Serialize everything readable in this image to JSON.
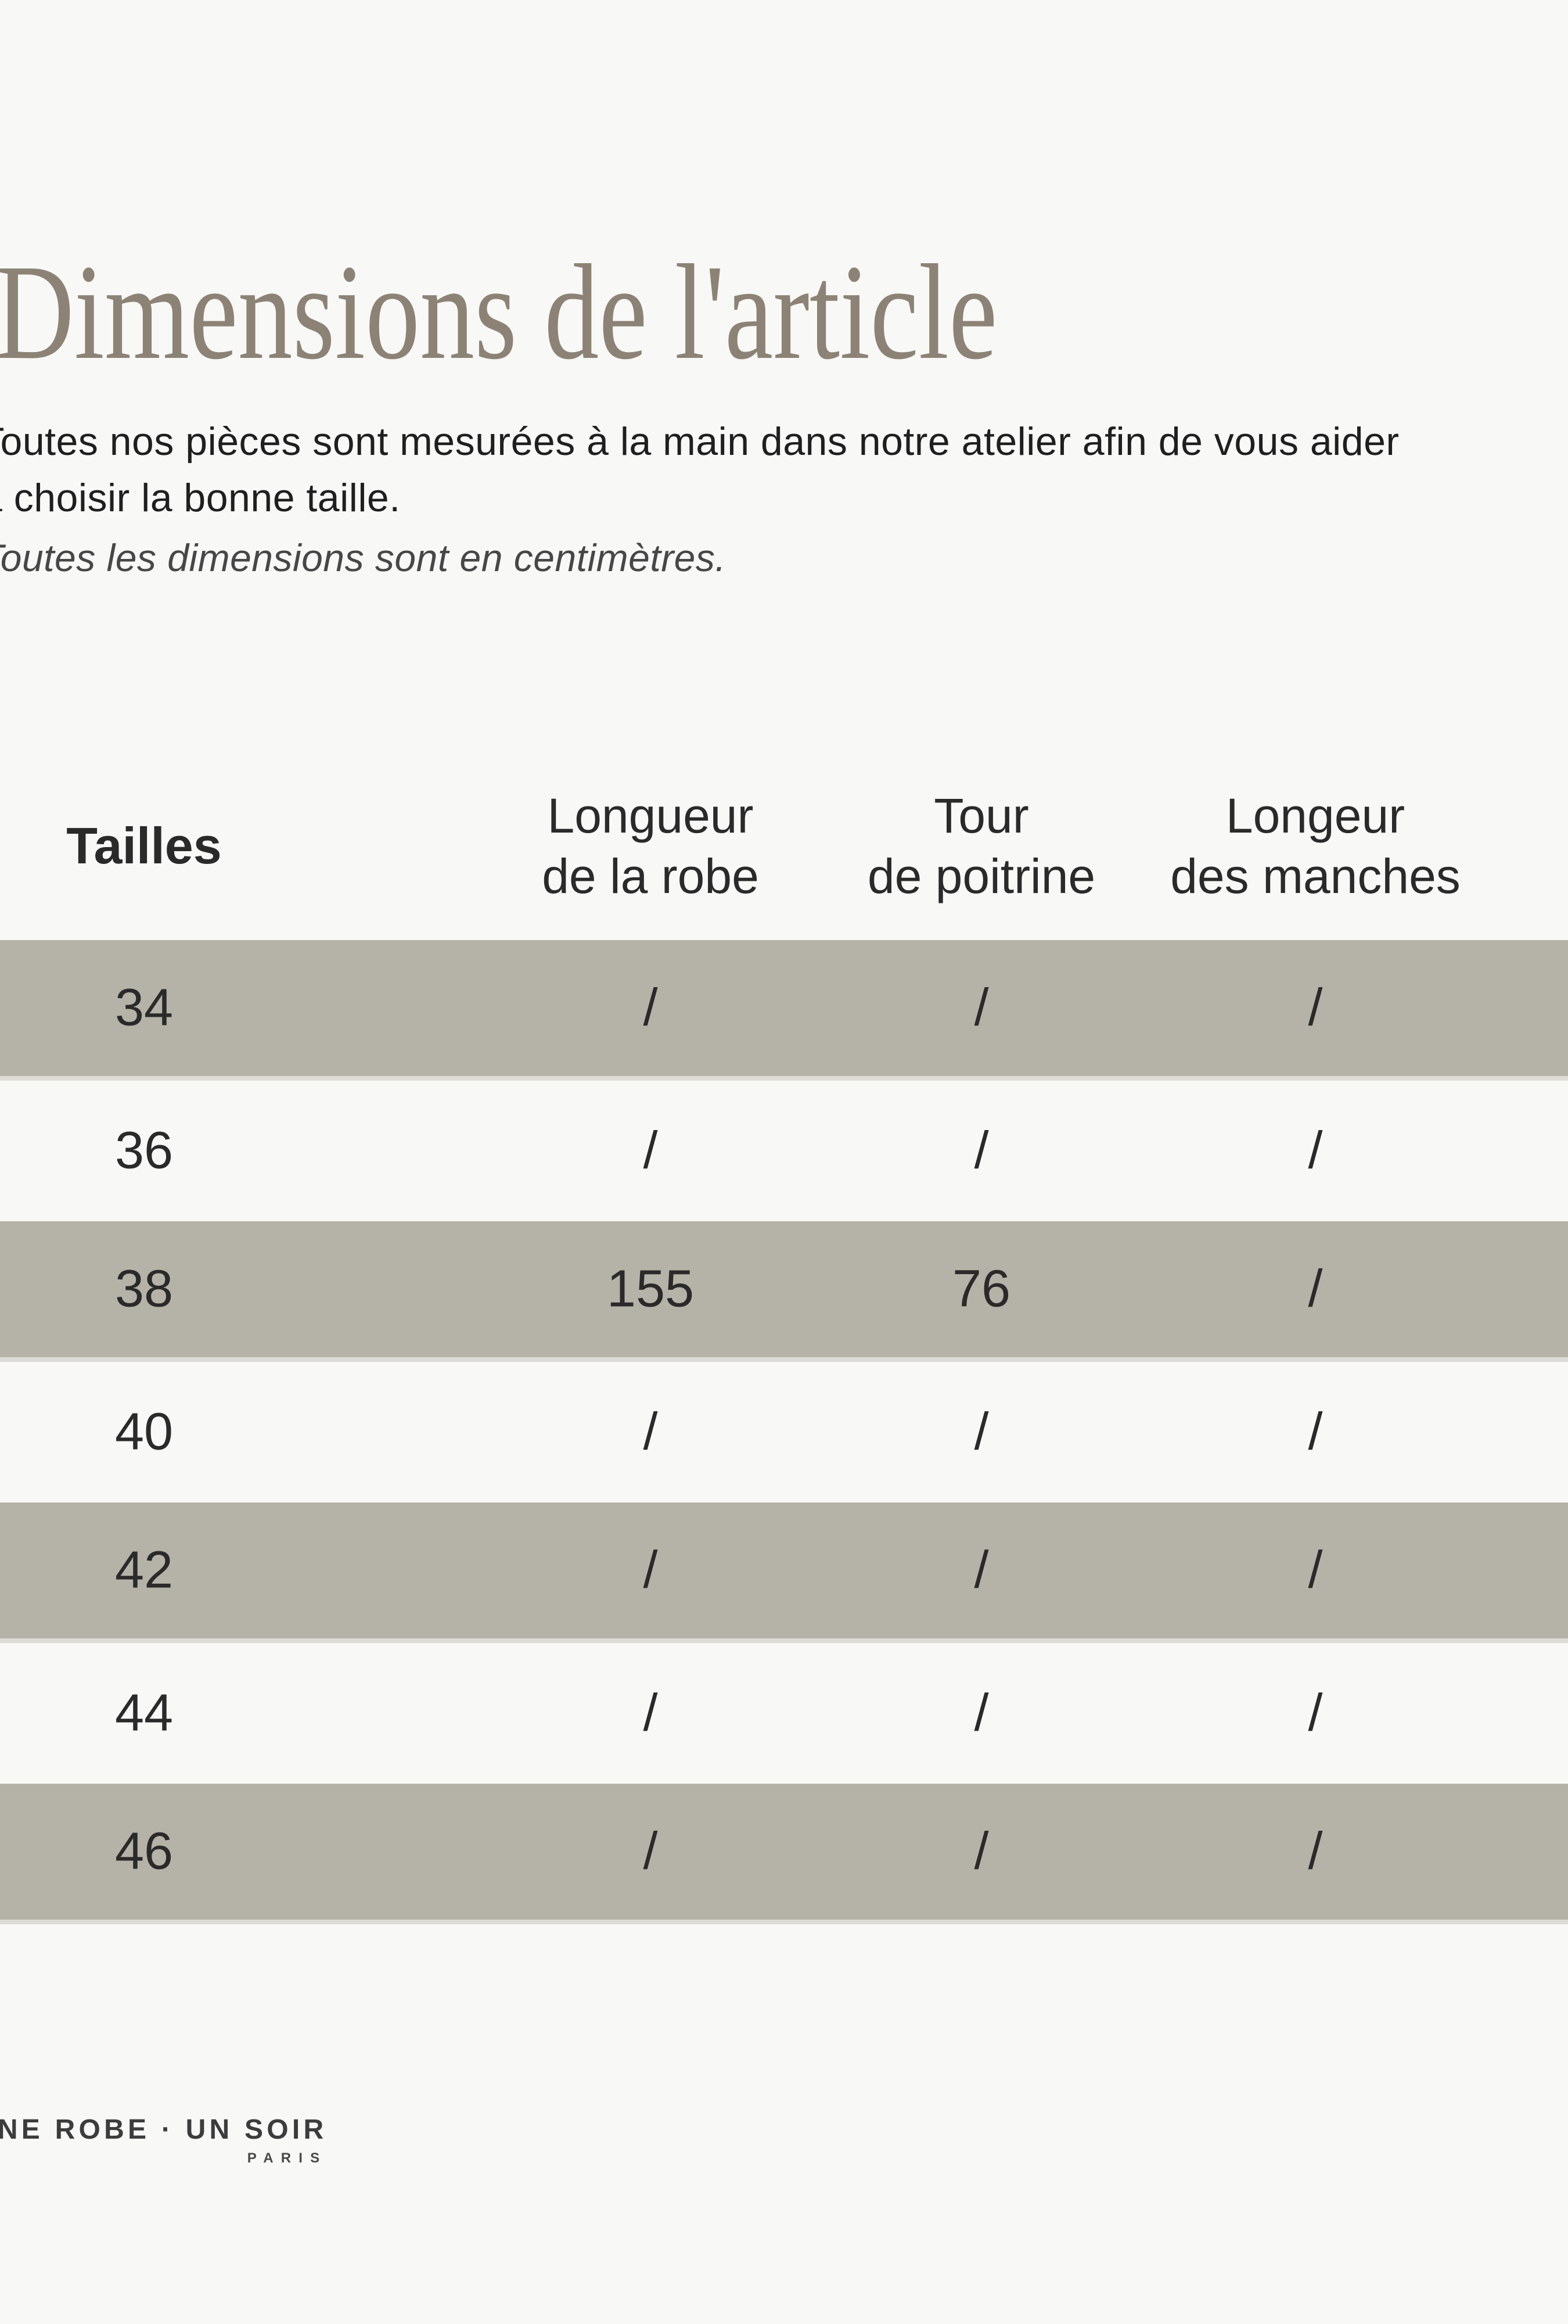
{
  "page": {
    "title": "Dimensions de l'article",
    "intro_line1": "Toutes nos pièces sont mesurées à la main dans notre atelier afin de vous aider",
    "intro_line2": "à choisir la bonne taille.",
    "unit_note": "Toutes les dimensions sont en centimètres."
  },
  "table": {
    "columns": [
      [
        "Tailles"
      ],
      [
        "Longueur",
        "de la robe"
      ],
      [
        "Tour",
        "de poitrine"
      ],
      [
        "Longeur",
        "des manches"
      ]
    ],
    "rows": [
      {
        "size": "34",
        "values": [
          "/",
          "/",
          "/"
        ]
      },
      {
        "size": "36",
        "values": [
          "/",
          "/",
          "/"
        ]
      },
      {
        "size": "38",
        "values": [
          "155",
          "76",
          "/"
        ]
      },
      {
        "size": "40",
        "values": [
          "/",
          "/",
          "/"
        ]
      },
      {
        "size": "42",
        "values": [
          "/",
          "/",
          "/"
        ]
      },
      {
        "size": "44",
        "values": [
          "/",
          "/",
          "/"
        ]
      },
      {
        "size": "46",
        "values": [
          "/",
          "/",
          "/"
        ]
      }
    ]
  },
  "footer": {
    "brand": "UNE ROBE · UN SOIR",
    "brand_sub": "PARIS"
  },
  "colors": {
    "page_bg": "#f8f8f6",
    "accent_row": "#b5b2a8",
    "title": "#8c8376"
  }
}
